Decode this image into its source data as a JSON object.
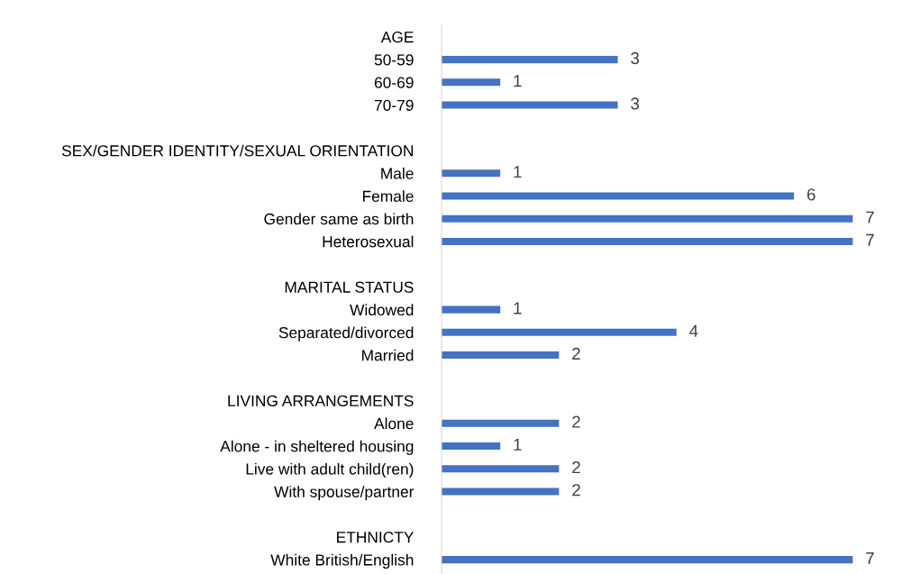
{
  "chart_data": {
    "type": "bar",
    "orientation": "horizontal",
    "data_labels": true,
    "grid": false,
    "legend": false,
    "color": "#4472c4",
    "categories": [
      "AGE",
      "50-59",
      "60-69",
      "70-79",
      null,
      "SEX/GENDER IDENTITY/SEXUAL ORIENTATION",
      "Male",
      "Female",
      "Gender same as birth",
      "Heterosexual",
      null,
      "MARITAL STATUS",
      "Widowed",
      "Separated/divorced",
      "Married",
      null,
      "LIVING ARRANGEMENTS",
      "Alone",
      "Alone - in sheltered housing",
      "Live with adult child(ren)",
      "With spouse/partner",
      null,
      "ETHNICTY",
      "White British/English"
    ],
    "values": [
      null,
      3,
      1,
      3,
      null,
      null,
      1,
      6,
      7,
      7,
      null,
      null,
      1,
      4,
      2,
      null,
      null,
      2,
      1,
      2,
      2,
      null,
      null,
      7
    ]
  }
}
